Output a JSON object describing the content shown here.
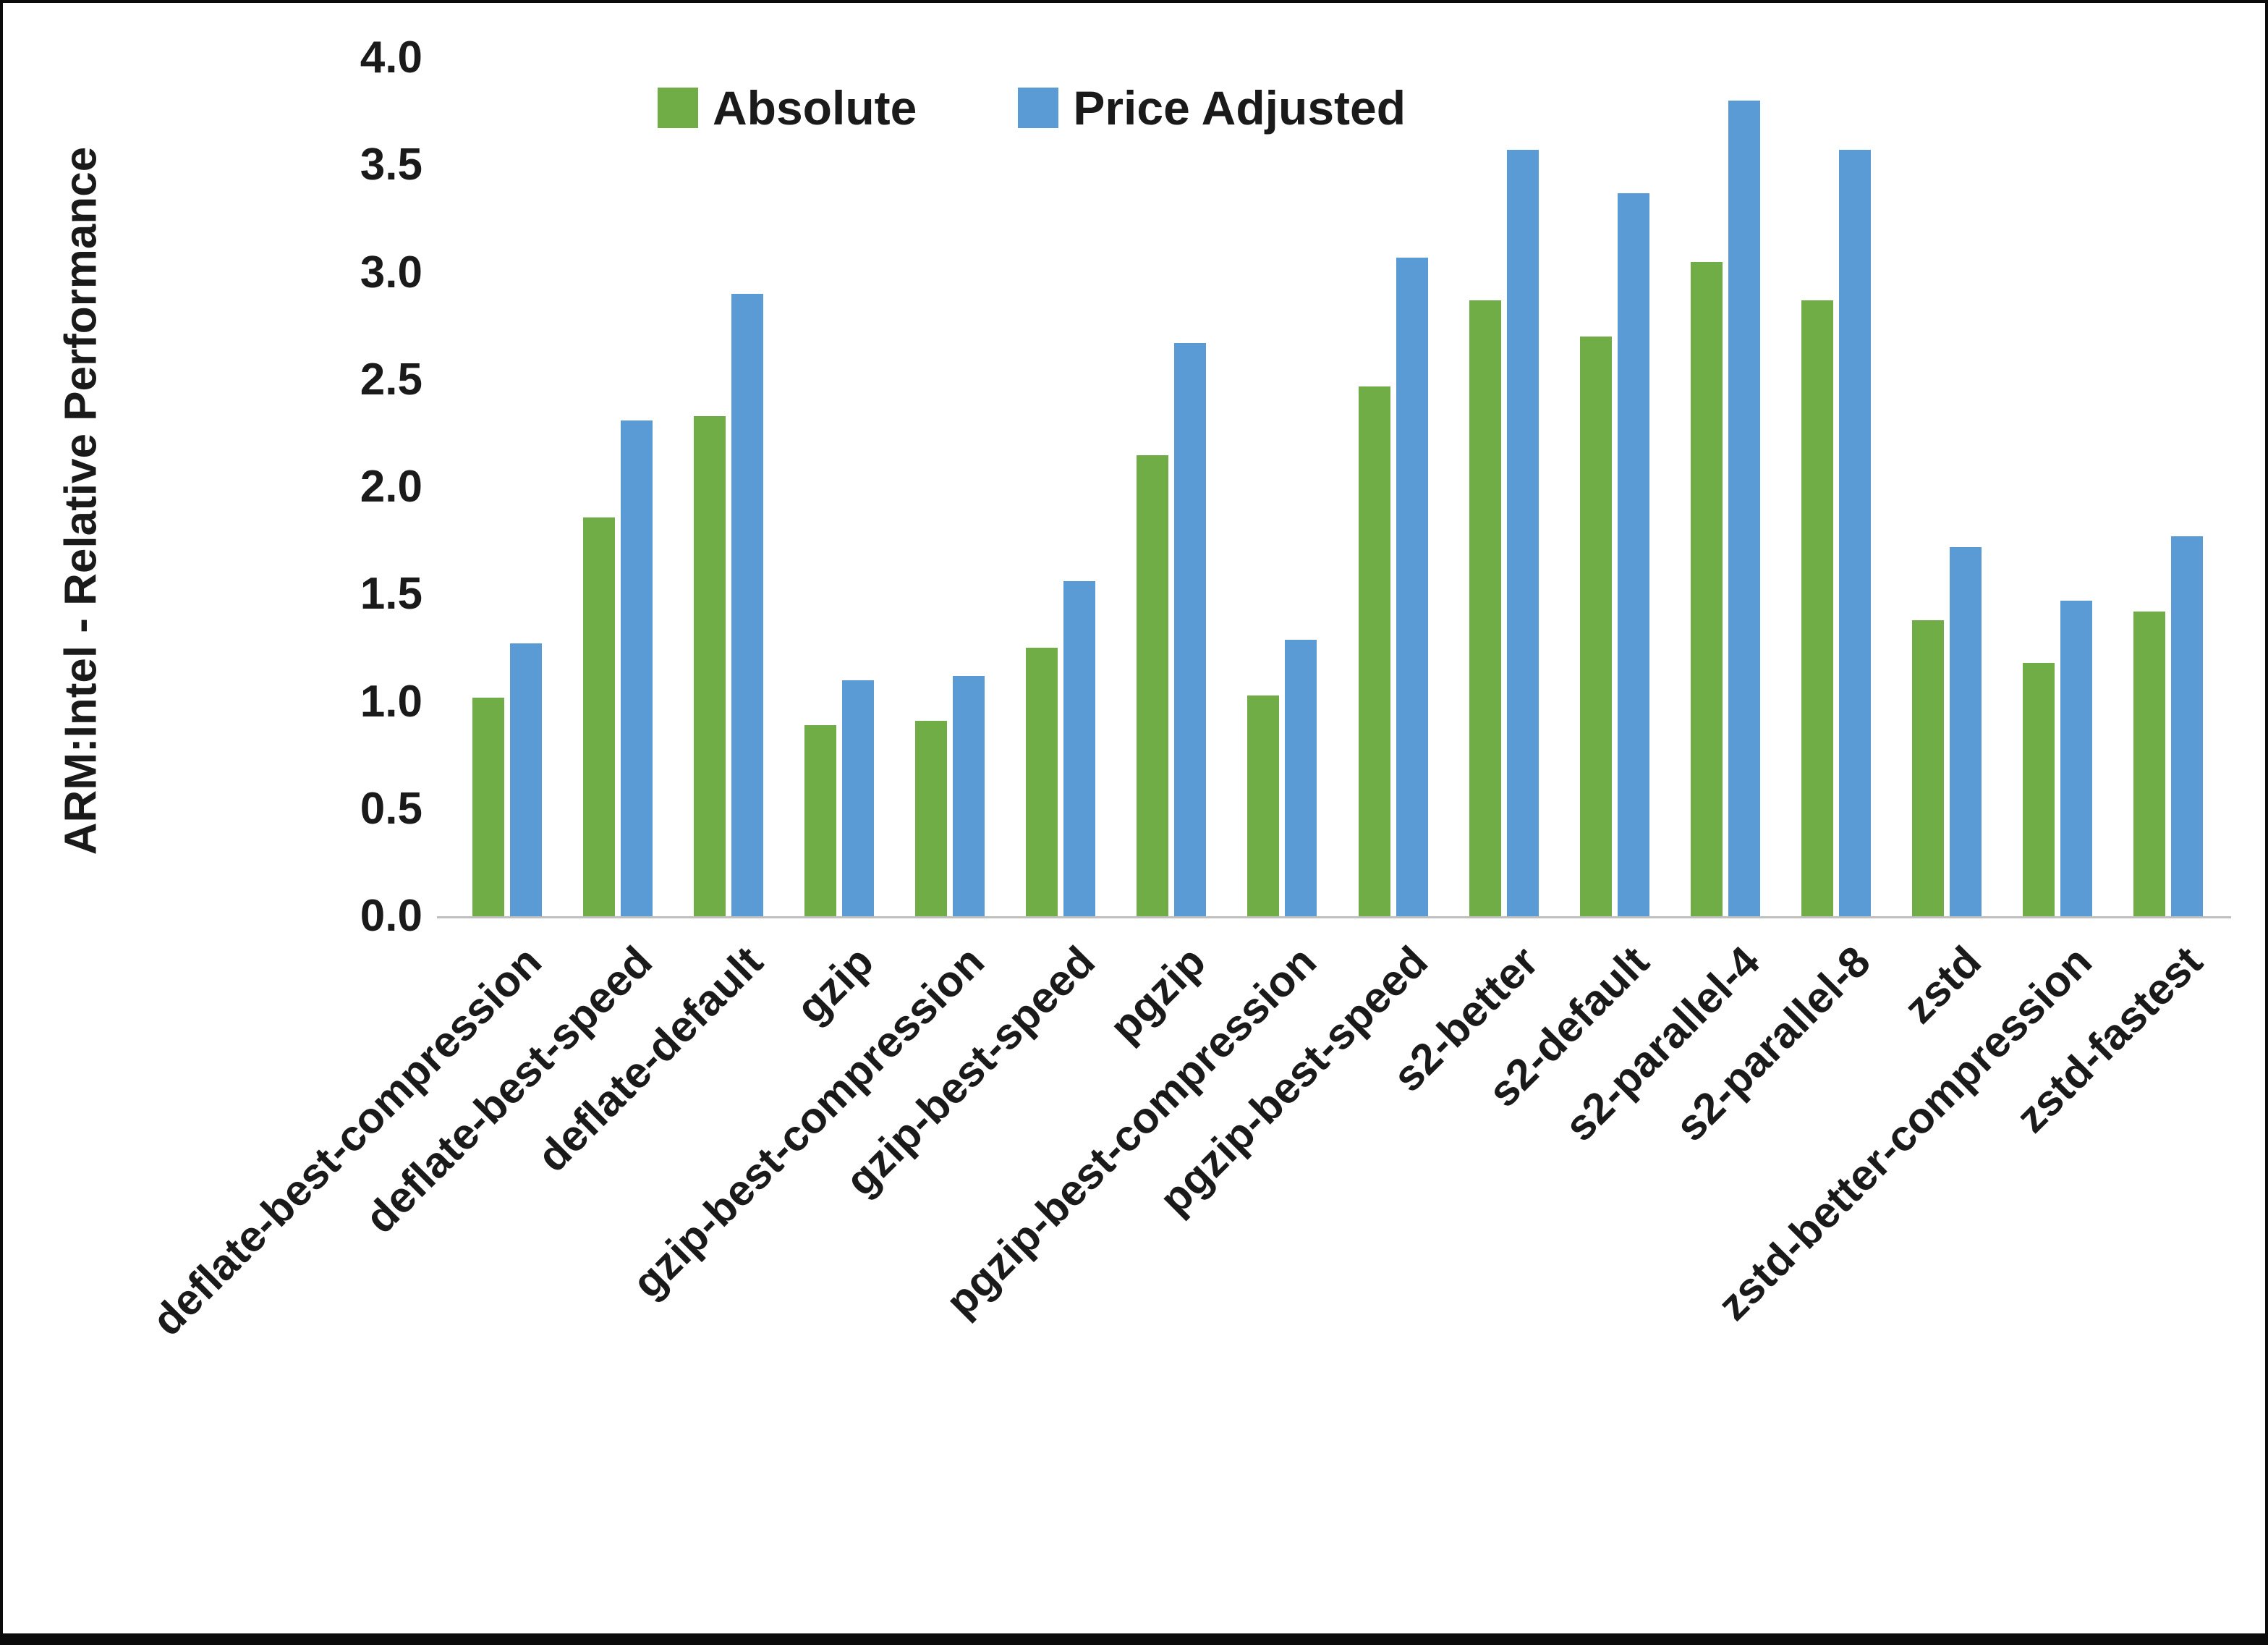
{
  "chart_data": {
    "type": "bar",
    "title": "",
    "xlabel": "",
    "ylabel": "ARM:Intel - Relative Performance",
    "ylim": [
      0,
      4
    ],
    "ytick_step": 0.5,
    "yticks": [
      "0.0",
      "0.5",
      "1.0",
      "1.5",
      "2.0",
      "2.5",
      "3.0",
      "3.5",
      "4.0"
    ],
    "grid": false,
    "legend_position": "top",
    "categories": [
      "deflate-best-compression",
      "deflate-best-speed",
      "deflate-default",
      "gzip",
      "gzip-best-compression",
      "gzip-best-speed",
      "pgzip",
      "pgzip-best-compression",
      "pgzip-best-speed",
      "s2-better",
      "s2-default",
      "s2-parallel-4",
      "s2-parallel-8",
      "zstd",
      "zstd-better-compression",
      "zstd-fastest"
    ],
    "series": [
      {
        "name": "Absolute",
        "color": "#70AD47",
        "values": [
          1.02,
          1.86,
          2.33,
          0.89,
          0.91,
          1.25,
          2.15,
          1.03,
          2.47,
          2.87,
          2.7,
          3.05,
          2.87,
          1.38,
          1.18,
          1.42
        ]
      },
      {
        "name": "Price Adjusted",
        "color": "#5B9BD5",
        "values": [
          1.27,
          2.31,
          2.9,
          1.1,
          1.12,
          1.56,
          2.67,
          1.29,
          3.07,
          3.57,
          3.37,
          3.8,
          3.57,
          1.72,
          1.47,
          1.77
        ]
      }
    ]
  }
}
